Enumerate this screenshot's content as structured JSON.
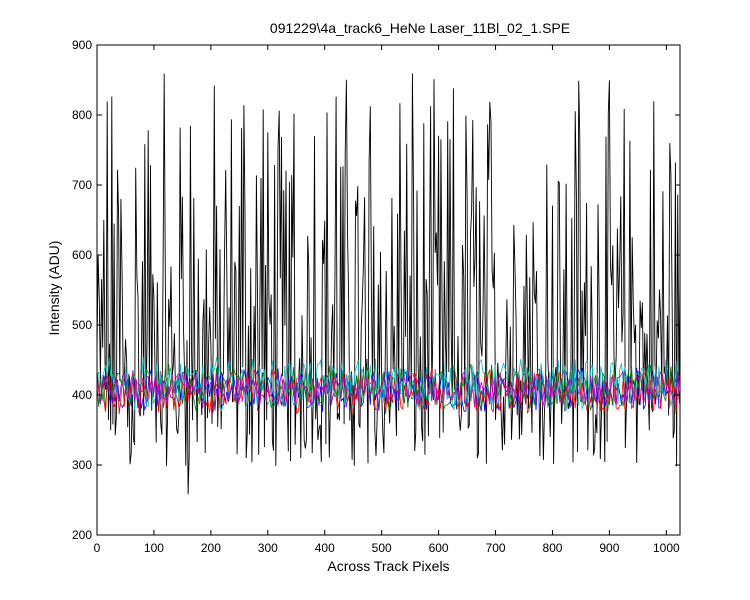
{
  "chart_data": {
    "type": "line",
    "title": "091229\\4a_track6_HeNe Laser_11Bl_02_1.SPE",
    "xlabel": "Across Track Pixels",
    "ylabel": "Intensity (ADU)",
    "xlim": [
      0,
      1024
    ],
    "ylim": [
      200,
      900
    ],
    "xticks": [
      "0",
      "100",
      "200",
      "300",
      "400",
      "500",
      "600",
      "700",
      "800",
      "900",
      "1000"
    ],
    "yticks": [
      "200",
      "300",
      "400",
      "500",
      "600",
      "700",
      "800",
      "900"
    ],
    "grid": false,
    "series": [
      {
        "color": "#000000",
        "min": 258,
        "max": 860,
        "baseline": 400,
        "description_values": "noisy signal oscillating roughly between 300 and 860"
      },
      {
        "color": "#0000ff",
        "min": 375,
        "max": 440
      },
      {
        "color": "#008000",
        "min": 375,
        "max": 445
      },
      {
        "color": "#ff0000",
        "min": 370,
        "max": 440
      },
      {
        "color": "#00bfbf",
        "min": 375,
        "max": 455
      },
      {
        "color": "#bf00bf",
        "min": 380,
        "max": 435
      }
    ]
  }
}
